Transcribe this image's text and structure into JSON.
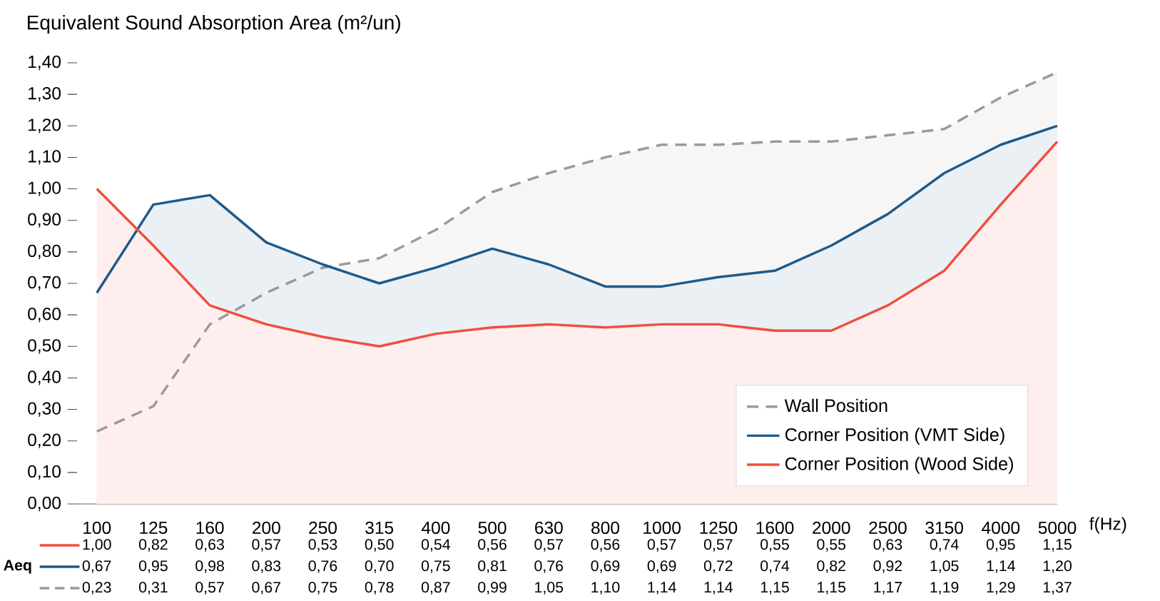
{
  "chart_data": {
    "type": "area",
    "title": "Equivalent Sound Absorption Area (m²/un)",
    "xlabel": "f(Hz)",
    "categories": [
      "100",
      "125",
      "160",
      "200",
      "250",
      "315",
      "400",
      "500",
      "630",
      "800",
      "1000",
      "1250",
      "1600",
      "2000",
      "2500",
      "3150",
      "4000",
      "5000"
    ],
    "series": [
      {
        "name": "Corner Position (Wood Side)",
        "color": "#f04e3e",
        "line_style": "solid",
        "values": [
          1.0,
          0.82,
          0.63,
          0.57,
          0.53,
          0.5,
          0.54,
          0.56,
          0.57,
          0.56,
          0.57,
          0.57,
          0.55,
          0.55,
          0.63,
          0.74,
          0.95,
          1.15
        ],
        "value_labels": [
          "1,00",
          "0,82",
          "0,63",
          "0,57",
          "0,53",
          "0,50",
          "0,54",
          "0,56",
          "0,57",
          "0,56",
          "0,57",
          "0,57",
          "0,55",
          "0,55",
          "0,63",
          "0,74",
          "0,95",
          "1,15"
        ]
      },
      {
        "name": "Corner Position (VMT Side)",
        "color": "#1f5a8a",
        "line_style": "solid",
        "values": [
          0.67,
          0.95,
          0.98,
          0.83,
          0.76,
          0.7,
          0.75,
          0.81,
          0.76,
          0.69,
          0.69,
          0.72,
          0.74,
          0.82,
          0.92,
          1.05,
          1.14,
          1.2
        ],
        "value_labels": [
          "0,67",
          "0,95",
          "0,98",
          "0,83",
          "0,76",
          "0,70",
          "0,75",
          "0,81",
          "0,76",
          "0,69",
          "0,69",
          "0,72",
          "0,74",
          "0,82",
          "0,92",
          "1,05",
          "1,14",
          "1,20"
        ]
      },
      {
        "name": "Wall Position",
        "color": "#9a9a9a",
        "line_style": "dashed",
        "values": [
          0.23,
          0.31,
          0.57,
          0.67,
          0.75,
          0.78,
          0.87,
          0.99,
          1.05,
          1.1,
          1.14,
          1.14,
          1.15,
          1.15,
          1.17,
          1.19,
          1.29,
          1.37
        ],
        "value_labels": [
          "0,23",
          "0,31",
          "0,57",
          "0,67",
          "0,75",
          "0,78",
          "0,87",
          "0,99",
          "1,05",
          "1,10",
          "1,14",
          "1,14",
          "1,15",
          "1,15",
          "1,17",
          "1,19",
          "1,29",
          "1,37"
        ]
      }
    ],
    "ylim": [
      0,
      1.4
    ],
    "yticks": [
      {
        "value": 0,
        "label": "0,00"
      },
      {
        "value": 0.1,
        "label": "0,10"
      },
      {
        "value": 0.2,
        "label": "0,20"
      },
      {
        "value": 0.3,
        "label": "0,30"
      },
      {
        "value": 0.4,
        "label": "0,40"
      },
      {
        "value": 0.5,
        "label": "0,50"
      },
      {
        "value": 0.6,
        "label": "0,60"
      },
      {
        "value": 0.7,
        "label": "0,70"
      },
      {
        "value": 0.8,
        "label": "0,80"
      },
      {
        "value": 0.9,
        "label": "0,90"
      },
      {
        "value": 1.0,
        "label": "1,00"
      },
      {
        "value": 1.1,
        "label": "1,10"
      },
      {
        "value": 1.2,
        "label": "1,20"
      },
      {
        "value": 1.3,
        "label": "1,30"
      },
      {
        "value": 1.4,
        "label": "1,40"
      }
    ],
    "annotations": [
      "Aeq"
    ],
    "legend": "bottom right",
    "grid": false
  }
}
